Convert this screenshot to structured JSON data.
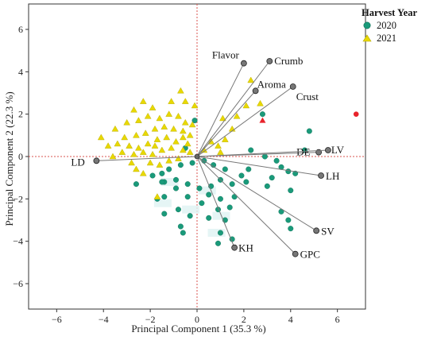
{
  "chart_data": {
    "type": "scatter",
    "subtype": "pca-biplot",
    "xlabel": "Principal Component 1  (35.3 %)",
    "ylabel": "Principal Component 2  (22.3 %)",
    "xlim": [
      -7.2,
      7.2
    ],
    "ylim": [
      -7.2,
      7.2
    ],
    "xticks": [
      -6,
      -4,
      -2,
      0,
      2,
      4,
      6
    ],
    "yticks": [
      6,
      4,
      2,
      0,
      -2,
      -4,
      -6
    ],
    "grid": false,
    "zero_lines": {
      "color": "#d9534f",
      "style": "dotted"
    },
    "legend": {
      "title": "Harvest Year",
      "placement": "top-right",
      "entries": [
        {
          "label": "2020",
          "shape": "circle",
          "color": "#1a9a7a"
        },
        {
          "label": "2021",
          "shape": "triangle",
          "color": "#e8d800"
        }
      ]
    },
    "series": [
      {
        "name": "2020",
        "shape": "circle",
        "color": "#1a9a7a",
        "points": [
          [
            -0.1,
            1.7
          ],
          [
            -0.5,
            0.4
          ],
          [
            2.3,
            0.3
          ],
          [
            2.8,
            2.0
          ],
          [
            4.8,
            1.2
          ],
          [
            4.6,
            0.3
          ],
          [
            2.9,
            0.0
          ],
          [
            3.4,
            -0.2
          ],
          [
            3.6,
            -0.5
          ],
          [
            3.9,
            -0.7
          ],
          [
            4.2,
            -0.8
          ],
          [
            3.2,
            -1.0
          ],
          [
            3.0,
            -1.4
          ],
          [
            4.0,
            -1.6
          ],
          [
            2.2,
            -0.6
          ],
          [
            1.9,
            -0.9
          ],
          [
            2.1,
            -1.2
          ],
          [
            1.2,
            -0.6
          ],
          [
            0.7,
            -0.4
          ],
          [
            0.3,
            -0.2
          ],
          [
            -0.2,
            -0.3
          ],
          [
            -0.7,
            -0.4
          ],
          [
            -1.2,
            -0.6
          ],
          [
            -1.5,
            -0.8
          ],
          [
            -1.9,
            -0.9
          ],
          [
            -1.4,
            -1.2
          ],
          [
            -0.9,
            -1.1
          ],
          [
            -0.4,
            -1.3
          ],
          [
            0.1,
            -1.5
          ],
          [
            0.6,
            -1.4
          ],
          [
            1.0,
            -1.1
          ],
          [
            1.5,
            -1.3
          ],
          [
            0.5,
            -1.8
          ],
          [
            1.0,
            -2.0
          ],
          [
            1.6,
            -1.9
          ],
          [
            0.9,
            -2.5
          ],
          [
            1.4,
            -2.4
          ],
          [
            0.2,
            -2.2
          ],
          [
            -0.4,
            -1.9
          ],
          [
            -0.9,
            -1.5
          ],
          [
            -1.4,
            -1.9
          ],
          [
            -1.7,
            -2.0
          ],
          [
            -1.4,
            -2.7
          ],
          [
            -0.8,
            -2.5
          ],
          [
            -0.3,
            -2.8
          ],
          [
            0.5,
            -2.9
          ],
          [
            1.2,
            -3.0
          ],
          [
            -0.7,
            -3.3
          ],
          [
            1.0,
            -3.6
          ],
          [
            -0.6,
            -3.6
          ],
          [
            0.9,
            -4.1
          ],
          [
            1.5,
            -3.9
          ],
          [
            3.9,
            -3.0
          ],
          [
            4.0,
            -3.4
          ],
          [
            3.6,
            -2.6
          ],
          [
            -2.6,
            -1.3
          ],
          [
            -1.5,
            -1.2
          ]
        ]
      },
      {
        "name": "2021",
        "shape": "triangle",
        "color": "#e8d800",
        "points": [
          [
            -0.7,
            3.1
          ],
          [
            -0.5,
            2.6
          ],
          [
            -0.1,
            2.4
          ],
          [
            -1.1,
            2.6
          ],
          [
            -1.9,
            2.3
          ],
          [
            -2.3,
            2.6
          ],
          [
            -2.7,
            2.2
          ],
          [
            -3.0,
            1.6
          ],
          [
            -2.5,
            1.7
          ],
          [
            -2.1,
            1.9
          ],
          [
            -1.6,
            1.8
          ],
          [
            -1.2,
            2.0
          ],
          [
            -0.8,
            1.9
          ],
          [
            -0.5,
            1.6
          ],
          [
            -0.2,
            1.5
          ],
          [
            -1.0,
            1.3
          ],
          [
            -1.4,
            1.4
          ],
          [
            -1.8,
            1.3
          ],
          [
            -2.2,
            1.1
          ],
          [
            -2.6,
            1.0
          ],
          [
            -3.1,
            0.9
          ],
          [
            -3.5,
            1.3
          ],
          [
            -4.1,
            0.9
          ],
          [
            -3.8,
            0.5
          ],
          [
            -3.4,
            0.6
          ],
          [
            -2.9,
            0.5
          ],
          [
            -2.5,
            0.4
          ],
          [
            -2.1,
            0.6
          ],
          [
            -1.7,
            0.8
          ],
          [
            -1.3,
            0.9
          ],
          [
            -0.9,
            0.7
          ],
          [
            -0.6,
            0.9
          ],
          [
            -0.3,
            1.0
          ],
          [
            -1.1,
            0.4
          ],
          [
            -1.5,
            0.3
          ],
          [
            -1.9,
            0.1
          ],
          [
            -2.3,
            0.2
          ],
          [
            -2.7,
            0.1
          ],
          [
            -3.2,
            0.2
          ],
          [
            -3.6,
            0.0
          ],
          [
            -0.6,
            0.3
          ],
          [
            -0.3,
            0.2
          ],
          [
            -0.8,
            -0.1
          ],
          [
            -1.2,
            -0.2
          ],
          [
            -1.6,
            -0.4
          ],
          [
            -2.0,
            -0.3
          ],
          [
            -2.8,
            -0.3
          ],
          [
            -2.6,
            -0.6
          ],
          [
            0.6,
            0.7
          ],
          [
            0.9,
            0.5
          ],
          [
            1.2,
            0.8
          ],
          [
            1.5,
            1.3
          ],
          [
            1.1,
            1.8
          ],
          [
            1.7,
            1.9
          ],
          [
            2.1,
            2.4
          ],
          [
            2.7,
            2.5
          ],
          [
            2.3,
            3.6
          ],
          [
            0.3,
            0.3
          ],
          [
            1.0,
            0.2
          ],
          [
            -0.4,
            0.6
          ],
          [
            -1.8,
            0.5
          ],
          [
            -2.3,
            -0.8
          ],
          [
            -1.7,
            -1.9
          ],
          [
            -0.6,
            1.2
          ]
        ]
      },
      {
        "name": "outliers",
        "shape": "mixed",
        "color": "#e8232b",
        "points": [
          [
            6.8,
            2.0
          ],
          [
            2.8,
            1.7
          ]
        ]
      }
    ],
    "loadings": [
      {
        "label": "Flavor",
        "x": 2.0,
        "y": 4.4
      },
      {
        "label": "Crumb",
        "x": 3.1,
        "y": 4.5
      },
      {
        "label": "Aroma",
        "x": 2.5,
        "y": 3.1
      },
      {
        "label": "Crust",
        "x": 4.1,
        "y": 3.3
      },
      {
        "label": "DE",
        "x": 5.2,
        "y": 0.2
      },
      {
        "label": "LV",
        "x": 5.6,
        "y": 0.3
      },
      {
        "label": "LH",
        "x": 5.3,
        "y": -0.9
      },
      {
        "label": "SV",
        "x": 5.1,
        "y": -3.5
      },
      {
        "label": "GPC",
        "x": 4.2,
        "y": -4.6
      },
      {
        "label": "KH",
        "x": 1.6,
        "y": -4.3
      },
      {
        "label": "LD",
        "x": -4.3,
        "y": -0.2
      }
    ]
  }
}
